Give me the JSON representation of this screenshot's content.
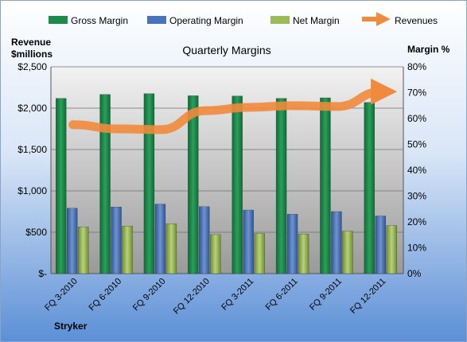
{
  "colors": {
    "gross": "#1e8a4a",
    "operating": "#4a74b8",
    "net": "#9bbb59",
    "revenues": "#f08a3c"
  },
  "chart_data": {
    "type": "bar",
    "title": "Quarterly Margins",
    "ylabel_left": [
      "Revenue",
      "$millions"
    ],
    "ylabel_right": "Margin %",
    "footer": "Stryker",
    "categories": [
      "FQ 3-2010",
      "FQ 6-2010",
      "FQ 9-2010",
      "FQ 12-2010",
      "FQ 3-2011",
      "FQ 6-2011",
      "FQ 9-2011",
      "FQ 12-2011"
    ],
    "left_axis": {
      "min": 0,
      "max": 2500,
      "ticks": [
        "$-",
        "$500",
        "$1,000",
        "$1,500",
        "$2,000",
        "$2,500"
      ],
      "tick_values": [
        0,
        500,
        1000,
        1500,
        2000,
        2500
      ]
    },
    "right_axis": {
      "min": 0,
      "max": 80,
      "ticks": [
        "0%",
        "10%",
        "20%",
        "30%",
        "40%",
        "50%",
        "60%",
        "70%",
        "80%"
      ],
      "tick_values": [
        0,
        10,
        20,
        30,
        40,
        50,
        60,
        70,
        80
      ]
    },
    "series": [
      {
        "name": "Gross Margin",
        "axis": "right",
        "values": [
          67.8,
          69.3,
          69.6,
          68.8,
          68.7,
          67.8,
          68.0,
          66.2
        ]
      },
      {
        "name": "Operating Margin",
        "axis": "right",
        "values": [
          25.3,
          25.8,
          26.9,
          25.9,
          24.6,
          23.0,
          24.0,
          22.3
        ]
      },
      {
        "name": "Net Margin",
        "axis": "right",
        "values": [
          18.1,
          18.4,
          19.3,
          15.1,
          15.5,
          15.3,
          16.4,
          18.6
        ]
      },
      {
        "name": "Revenues",
        "axis": "left",
        "type": "line",
        "values": [
          1800,
          1750,
          1740,
          1970,
          2010,
          2030,
          2020,
          2200
        ]
      }
    ],
    "legend_position": "top",
    "grid": true
  }
}
